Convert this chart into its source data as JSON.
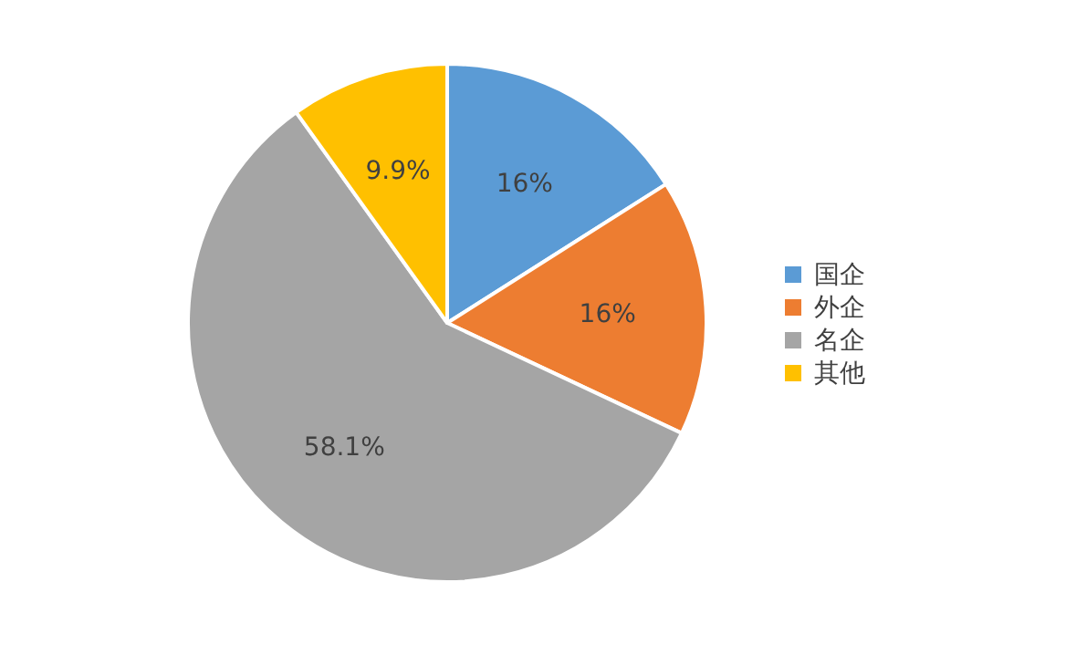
{
  "chart_data": {
    "type": "pie",
    "categories": [
      "国企",
      "外企",
      "名企",
      "其他"
    ],
    "values": [
      16,
      16,
      58.1,
      9.9
    ],
    "colors": [
      "#5b9bd5",
      "#ed7d31",
      "#a5a5a5",
      "#ffc000"
    ],
    "value_labels": [
      "16%",
      "16%",
      "58.1%",
      "9.9%"
    ],
    "legend": "right"
  }
}
